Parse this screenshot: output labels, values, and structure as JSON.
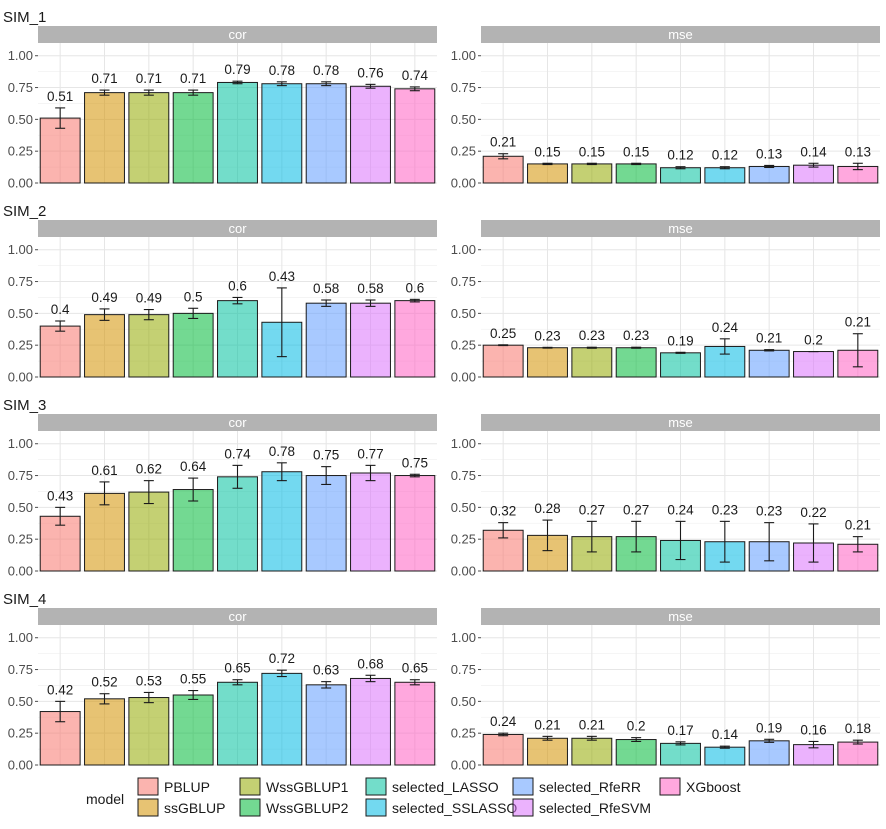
{
  "chart_data": {
    "type": "bar",
    "facet_titles": [
      "cor",
      "mse"
    ],
    "y_ticks": [
      "0.00",
      "0.25",
      "0.50",
      "0.75",
      "1.00"
    ],
    "ylim": [
      0,
      1.1
    ],
    "legend_title": "model",
    "models": [
      {
        "name": "PBLUP",
        "color": "#F8766D"
      },
      {
        "name": "ssGBLUP",
        "color": "#D39200"
      },
      {
        "name": "WssGBLUP1",
        "color": "#93AA00"
      },
      {
        "name": "WssGBLUP2",
        "color": "#00BA38"
      },
      {
        "name": "selected_LASSO",
        "color": "#00C19F"
      },
      {
        "name": "selected_SSLASSO",
        "color": "#00B9E3"
      },
      {
        "name": "selected_RfeRR",
        "color": "#619CFF"
      },
      {
        "name": "selected_RfeSVM",
        "color": "#DB72FB"
      },
      {
        "name": "XGboost",
        "color": "#FF61C3"
      }
    ],
    "rows": [
      {
        "title": "SIM_1",
        "cor": {
          "values": [
            0.51,
            0.71,
            0.71,
            0.71,
            0.79,
            0.78,
            0.78,
            0.76,
            0.74
          ],
          "labels": [
            "0.51",
            "0.71",
            "0.71",
            "0.71",
            "0.79",
            "0.78",
            "0.78",
            "0.76",
            "0.74"
          ],
          "err": [
            0.08,
            0.02,
            0.02,
            0.02,
            0.01,
            0.015,
            0.015,
            0.015,
            0.015
          ]
        },
        "mse": {
          "values": [
            0.21,
            0.15,
            0.15,
            0.15,
            0.12,
            0.12,
            0.13,
            0.14,
            0.13
          ],
          "labels": [
            "0.21",
            "0.15",
            "0.15",
            "0.15",
            "0.12",
            "0.12",
            "0.13",
            "0.14",
            "0.13"
          ],
          "err": [
            0.02,
            0.005,
            0.005,
            0.005,
            0.008,
            0.008,
            0.008,
            0.015,
            0.025
          ]
        }
      },
      {
        "title": "SIM_2",
        "cor": {
          "values": [
            0.4,
            0.49,
            0.49,
            0.5,
            0.6,
            0.43,
            0.58,
            0.58,
            0.6
          ],
          "labels": [
            "0.4",
            "0.49",
            "0.49",
            "0.5",
            "0.6",
            "0.43",
            "0.58",
            "0.58",
            "0.6"
          ],
          "err": [
            0.04,
            0.045,
            0.04,
            0.04,
            0.025,
            0.27,
            0.025,
            0.025,
            0.01
          ]
        },
        "mse": {
          "values": [
            0.25,
            0.23,
            0.23,
            0.23,
            0.19,
            0.24,
            0.21,
            0.2,
            0.21
          ],
          "labels": [
            "0.25",
            "0.23",
            "0.23",
            "0.23",
            "0.19",
            "0.24",
            "0.21",
            "0.2",
            "0.21"
          ],
          "err": [
            0.003,
            0.003,
            0.004,
            0.004,
            0.004,
            0.06,
            0.005,
            0.0,
            0.13
          ]
        }
      },
      {
        "title": "SIM_3",
        "cor": {
          "values": [
            0.43,
            0.61,
            0.62,
            0.64,
            0.74,
            0.78,
            0.75,
            0.77,
            0.75
          ],
          "labels": [
            "0.43",
            "0.61",
            "0.62",
            "0.64",
            "0.74",
            "0.78",
            "0.75",
            "0.77",
            "0.75"
          ],
          "err": [
            0.07,
            0.09,
            0.09,
            0.09,
            0.09,
            0.07,
            0.07,
            0.06,
            0.01
          ]
        },
        "mse": {
          "values": [
            0.32,
            0.28,
            0.27,
            0.27,
            0.24,
            0.23,
            0.23,
            0.22,
            0.21
          ],
          "labels": [
            "0.32",
            "0.28",
            "0.27",
            "0.27",
            "0.24",
            "0.23",
            "0.23",
            "0.22",
            "0.21"
          ],
          "err": [
            0.06,
            0.12,
            0.12,
            0.12,
            0.15,
            0.16,
            0.15,
            0.15,
            0.06
          ]
        }
      },
      {
        "title": "SIM_4",
        "cor": {
          "values": [
            0.42,
            0.52,
            0.53,
            0.55,
            0.65,
            0.72,
            0.63,
            0.68,
            0.65
          ],
          "labels": [
            "0.42",
            "0.52",
            "0.53",
            "0.55",
            "0.65",
            "0.72",
            "0.63",
            "0.68",
            "0.65"
          ],
          "err": [
            0.08,
            0.04,
            0.04,
            0.035,
            0.02,
            0.025,
            0.025,
            0.025,
            0.02
          ]
        },
        "mse": {
          "values": [
            0.24,
            0.21,
            0.21,
            0.2,
            0.17,
            0.14,
            0.19,
            0.16,
            0.18
          ],
          "labels": [
            "0.24",
            "0.21",
            "0.21",
            "0.2",
            "0.17",
            "0.14",
            "0.19",
            "0.16",
            "0.18"
          ],
          "err": [
            0.01,
            0.015,
            0.015,
            0.015,
            0.012,
            0.008,
            0.012,
            0.025,
            0.015
          ]
        }
      }
    ]
  }
}
